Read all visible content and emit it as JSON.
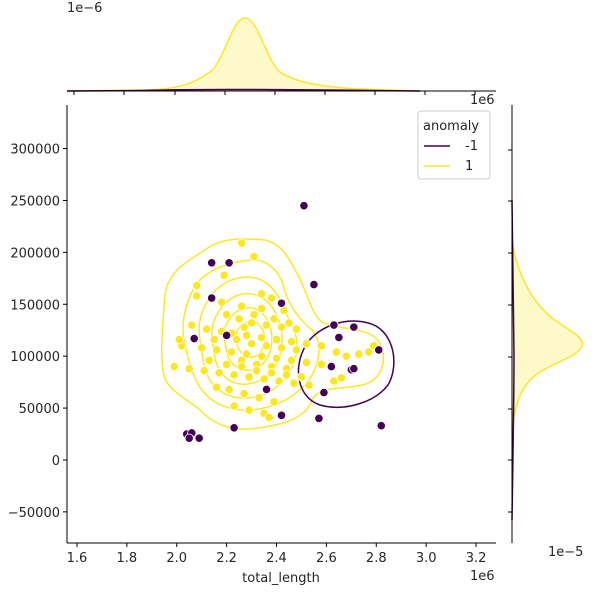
{
  "chart_data": {
    "type": "scatter",
    "title": "",
    "xlabel": "total_length",
    "ylabel": "",
    "x_scale_note": "1e6",
    "y_axis_ticks": [
      "−50000",
      "0",
      "50000",
      "100000",
      "150000",
      "200000",
      "250000",
      "300000"
    ],
    "x_axis_ticks": [
      "1.6",
      "1.8",
      "2.0",
      "2.2",
      "2.4",
      "2.6",
      "2.8",
      "3.0",
      "3.2"
    ],
    "xlim": [
      1.56,
      3.28
    ],
    "ylim": [
      -80000,
      342000
    ],
    "legend": {
      "title": "anomaly",
      "entries": [
        {
          "label": "-1",
          "color": "#440154"
        },
        {
          "label": "1",
          "color": "#fde725"
        }
      ]
    },
    "marginal_top": {
      "scale_label": "1e−6",
      "note": "kde density of total_length"
    },
    "marginal_right": {
      "scale_label": "1e−5",
      "note": "kde density of y",
      "top_scale_label": "1e6"
    },
    "series": [
      {
        "name": "-1",
        "color": "#440154",
        "points": [
          [
            2.51,
            245000
          ],
          [
            2.55,
            169000
          ],
          [
            2.14,
            156000
          ],
          [
            2.21,
            190000
          ],
          [
            2.14,
            190000
          ],
          [
            2.07,
            117000
          ],
          [
            2.71,
            128000
          ],
          [
            2.81,
            106000
          ],
          [
            2.42,
            151000
          ],
          [
            2.65,
            118000
          ],
          [
            2.57,
            40000
          ],
          [
            2.59,
            65000
          ],
          [
            2.82,
            33000
          ],
          [
            2.23,
            31000
          ],
          [
            2.04,
            25000
          ],
          [
            2.06,
            26000
          ],
          [
            2.09,
            21000
          ],
          [
            2.05,
            21000
          ],
          [
            2.36,
            68000
          ],
          [
            2.42,
            43000
          ],
          [
            2.7,
            87000
          ],
          [
            2.62,
            90000
          ],
          [
            2.71,
            88000
          ],
          [
            2.2,
            120000
          ],
          [
            2.63,
            130000
          ]
        ]
      },
      {
        "name": "1",
        "color": "#fde725",
        "points": [
          [
            2.26,
            209000
          ],
          [
            2.31,
            196000
          ],
          [
            2.19,
            178000
          ],
          [
            2.08,
            168000
          ],
          [
            2.08,
            158000
          ],
          [
            2.18,
            152000
          ],
          [
            2.26,
            148000
          ],
          [
            2.34,
            146000
          ],
          [
            2.43,
            144000
          ],
          [
            2.06,
            130000
          ],
          [
            2.12,
            126000
          ],
          [
            2.18,
            124000
          ],
          [
            2.22,
            122000
          ],
          [
            2.28,
            120000
          ],
          [
            2.34,
            118000
          ],
          [
            2.4,
            116000
          ],
          [
            2.46,
            114000
          ],
          [
            2.52,
            112000
          ],
          [
            2.58,
            110000
          ],
          [
            2.1,
            108000
          ],
          [
            2.16,
            106000
          ],
          [
            2.22,
            104000
          ],
          [
            2.28,
            102000
          ],
          [
            2.34,
            100000
          ],
          [
            2.4,
            98000
          ],
          [
            2.46,
            96000
          ],
          [
            2.52,
            94000
          ],
          [
            2.58,
            92000
          ],
          [
            1.99,
            90000
          ],
          [
            2.05,
            88000
          ],
          [
            2.11,
            86000
          ],
          [
            2.17,
            84000
          ],
          [
            2.23,
            82000
          ],
          [
            2.29,
            80000
          ],
          [
            2.35,
            78000
          ],
          [
            2.41,
            76000
          ],
          [
            2.47,
            74000
          ],
          [
            2.53,
            72000
          ],
          [
            2.21,
            68000
          ],
          [
            2.27,
            64000
          ],
          [
            2.33,
            60000
          ],
          [
            2.39,
            56000
          ],
          [
            2.23,
            52000
          ],
          [
            2.29,
            48000
          ],
          [
            2.35,
            45000
          ],
          [
            2.37,
            41000
          ],
          [
            2.68,
            100000
          ],
          [
            2.73,
            102000
          ],
          [
            2.77,
            104000
          ],
          [
            2.79,
            110000
          ],
          [
            2.64,
            104000
          ],
          [
            2.63,
            76000
          ],
          [
            2.66,
            79000
          ],
          [
            2.2,
            140000
          ],
          [
            2.25,
            136000
          ],
          [
            2.3,
            132000
          ],
          [
            2.36,
            130000
          ],
          [
            2.42,
            128000
          ],
          [
            2.48,
            126000
          ],
          [
            2.24,
            116000
          ],
          [
            2.3,
            112000
          ],
          [
            2.36,
            110000
          ],
          [
            2.42,
            108000
          ],
          [
            2.48,
            106000
          ],
          [
            2.26,
            96000
          ],
          [
            2.32,
            92000
          ],
          [
            2.38,
            90000
          ],
          [
            2.44,
            88000
          ],
          [
            2.2,
            92000
          ],
          [
            2.26,
            90000
          ],
          [
            2.32,
            86000
          ],
          [
            2.38,
            84000
          ],
          [
            2.44,
            82000
          ],
          [
            2.5,
            80000
          ],
          [
            2.34,
            160000
          ],
          [
            2.38,
            156000
          ],
          [
            2.31,
            140000
          ],
          [
            2.39,
            136000
          ],
          [
            2.45,
            132000
          ],
          [
            2.27,
            128000
          ],
          [
            2.15,
            116000
          ],
          [
            2.13,
            96000
          ],
          [
            2.02,
            110000
          ],
          [
            2.01,
            116000
          ],
          [
            2.16,
            70000
          ]
        ]
      }
    ]
  }
}
